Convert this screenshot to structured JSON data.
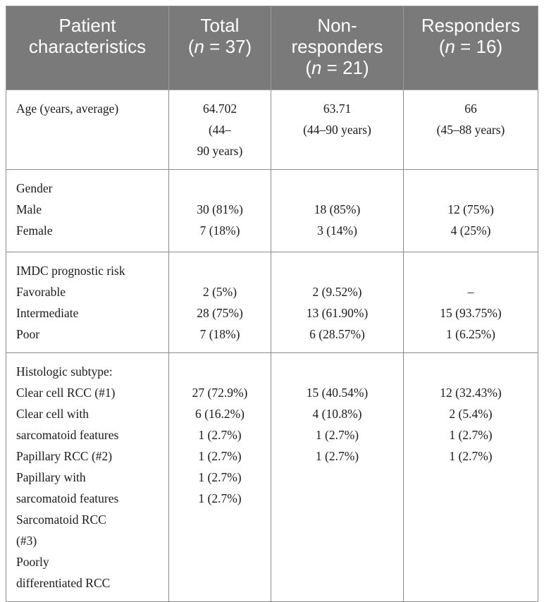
{
  "table": {
    "headers": [
      {
        "line1": "Patient",
        "line2": "characteristics"
      },
      {
        "line1": "Total",
        "line2_pre": "(",
        "n": "n",
        "line2_post": " = 37)"
      },
      {
        "line1": "Non-",
        "line2": "responders",
        "line3_pre": "(",
        "n": "n",
        "line3_post": " = 21)"
      },
      {
        "line1": "Responders",
        "line2_pre": "(",
        "n": "n",
        "line2_post": " = 16)"
      }
    ],
    "age": {
      "label": "Age (years, average)",
      "total": [
        "64.702",
        "(44–",
        "90 years)"
      ],
      "nonresponders": [
        "63.71",
        "(44–90 years)"
      ],
      "responders": [
        "66",
        "(45–88 years)"
      ]
    },
    "gender": {
      "heading": "Gender",
      "rows": [
        {
          "label": "Male",
          "total": "30 (81%)",
          "nonresponders": "18 (85%)",
          "responders": "12 (75%)"
        },
        {
          "label": "Female",
          "total": "7 (18%)",
          "nonresponders": "3 (14%)",
          "responders": "4 (25%)"
        }
      ]
    },
    "imdc": {
      "heading": "IMDC prognostic risk",
      "rows": [
        {
          "label": "Favorable",
          "total": "2 (5%)",
          "nonresponders": "2 (9.52%)",
          "responders": "–"
        },
        {
          "label": "Intermediate",
          "total": "28 (75%)",
          "nonresponders": "13 (61.90%)",
          "responders": "15 (93.75%)"
        },
        {
          "label": "Poor",
          "total": "7 (18%)",
          "nonresponders": "6 (28.57%)",
          "responders": "1 (6.25%)"
        }
      ]
    },
    "histologic": {
      "heading": "Histologic subtype:",
      "labels": [
        "Clear cell RCC (#1)",
        "Clear cell with",
        "sarcomatoid features",
        "Papillary RCC (#2)",
        "Papillary with",
        "sarcomatoid features",
        "Sarcomatoid RCC",
        "(#3)",
        "Poorly",
        "differentiated RCC"
      ],
      "total": [
        "27 (72.9%)",
        "6 (16.2%)",
        "1 (2.7%)",
        "1 (2.7%)",
        "1 (2.7%)",
        "1 (2.7%)"
      ],
      "nonresponders": [
        "15 (40.54%)",
        "4 (10.8%)",
        "1 (2.7%)",
        "1 (2.7%)"
      ],
      "responders": [
        "12 (32.43%)",
        "2 (5.4%)",
        "1 (2.7%)",
        "1 (2.7%)"
      ]
    }
  }
}
